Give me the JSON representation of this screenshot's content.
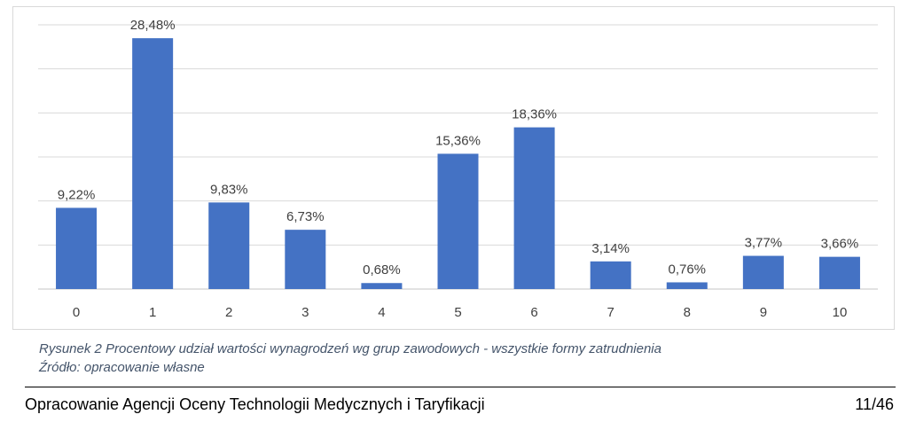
{
  "chart_data": {
    "type": "bar",
    "categories": [
      "0",
      "1",
      "2",
      "3",
      "4",
      "5",
      "6",
      "7",
      "8",
      "9",
      "10"
    ],
    "values": [
      9.22,
      28.48,
      9.83,
      6.73,
      0.68,
      15.36,
      18.36,
      3.14,
      0.76,
      3.77,
      3.66
    ],
    "data_labels": [
      "9,22%",
      "28,48%",
      "9,83%",
      "6,73%",
      "0,68%",
      "15,36%",
      "18,36%",
      "3,14%",
      "0,76%",
      "3,77%",
      "3,66%"
    ],
    "ylim": [
      0,
      30
    ],
    "gridlines": [
      0,
      5,
      10,
      15,
      20,
      25,
      30
    ],
    "grid": true,
    "legend": "none",
    "bar_color": "#4472c4",
    "grid_color": "#d9d9d9"
  },
  "caption": {
    "line1": "Rysunek 2 Procentowy udział wartości wynagrodzeń wg grup zawodowych - wszystkie formy zatrudnienia",
    "line2": "Źródło: opracowanie własne"
  },
  "footer": {
    "text": "Opracowanie Agencji Oceny Technologii Medycznych i Taryfikacji",
    "page": "11/46"
  }
}
